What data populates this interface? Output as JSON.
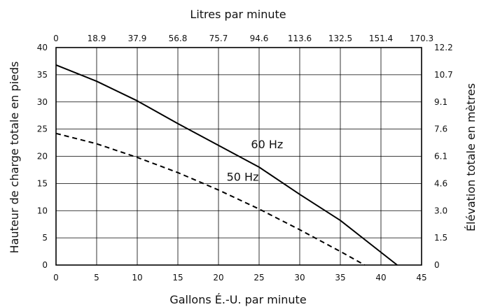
{
  "chart_data": {
    "type": "line",
    "top_axis": {
      "title": "Litres par minute",
      "tick_labels": [
        "0",
        "18.9",
        "37.9",
        "56.8",
        "75.7",
        "94.6",
        "113.6",
        "132.5",
        "151.4",
        "170.3"
      ]
    },
    "x_axis": {
      "title": "Gallons É.-U. par minute",
      "range": [
        0,
        45
      ],
      "tick_labels": [
        "0",
        "5",
        "10",
        "15",
        "20",
        "25",
        "30",
        "35",
        "40",
        "45"
      ]
    },
    "y_axis": {
      "title": "Hauteur de charge totale en pieds",
      "range": [
        0,
        40
      ],
      "tick_labels": [
        "0",
        "5",
        "10",
        "15",
        "20",
        "25",
        "30",
        "35",
        "40"
      ]
    },
    "right_axis": {
      "title": "Élévation totale en mètres",
      "tick_labels": [
        "0",
        "1.5",
        "3.0",
        "4.6",
        "6.1",
        "7.6",
        "9.1",
        "10.7",
        "12.2"
      ]
    },
    "grid": true,
    "series": [
      {
        "name": "60 Hz",
        "style": "solid",
        "color": "#000000",
        "x": [
          0,
          5,
          10,
          15,
          20,
          25,
          30,
          35,
          42
        ],
        "y": [
          36.8,
          33.8,
          30.2,
          26,
          22,
          18,
          13,
          8.2,
          0
        ]
      },
      {
        "name": "50 Hz",
        "style": "dashed",
        "color": "#000000",
        "x": [
          0,
          5,
          10,
          15,
          20,
          25,
          30,
          35,
          38
        ],
        "y": [
          24.2,
          22.3,
          19.8,
          17,
          13.8,
          10.3,
          6.5,
          2.5,
          0
        ]
      }
    ]
  }
}
